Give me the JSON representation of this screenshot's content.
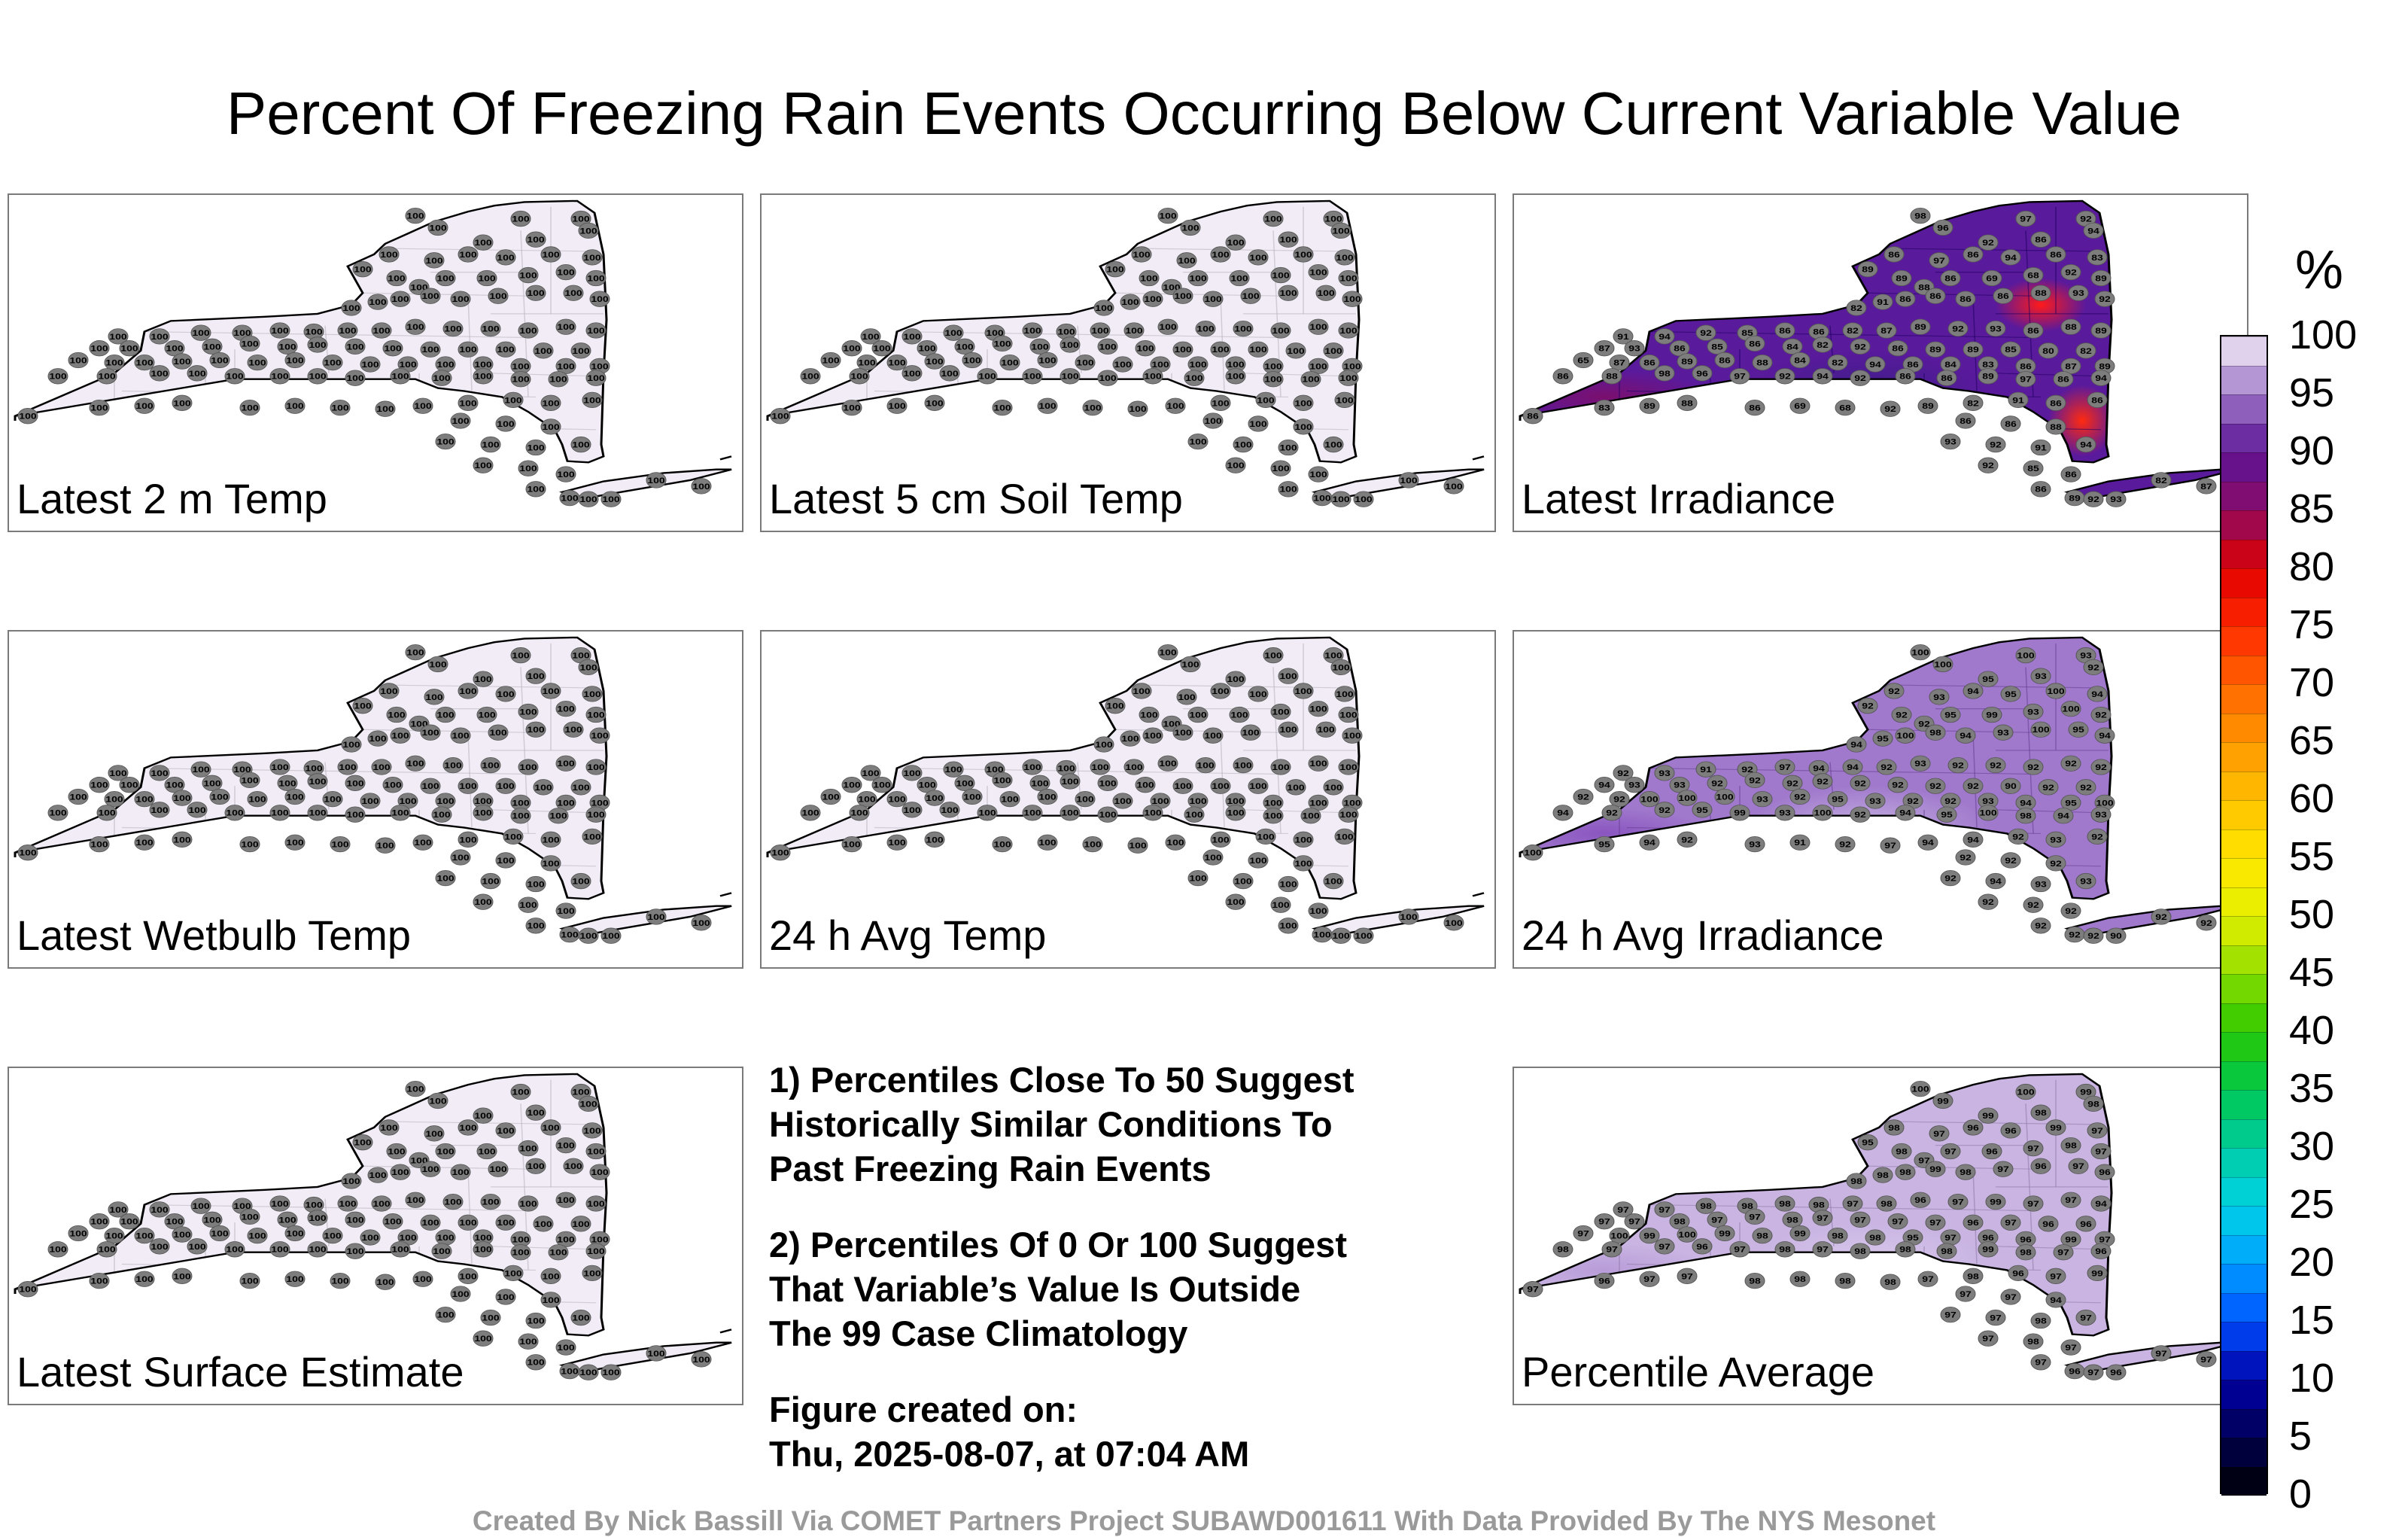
{
  "title": "Percent Of Freezing Rain Events Occurring Below Current Variable Value",
  "panels": [
    {
      "label": "Latest 2 m Temp",
      "fill": "#f1ecf5",
      "hotspots": [],
      "station_values": [
        100
      ]
    },
    {
      "label": "Latest 5 cm Soil Temp",
      "fill": "#f1ecf5",
      "hotspots": [],
      "station_values": [
        100
      ]
    },
    {
      "label": "Latest Irradiance",
      "fill": "#5a1a9c",
      "regions": [
        {
          "color": "#7b0f6e"
        },
        {
          "color": "#3f1d8a"
        }
      ],
      "hotspots": [
        {
          "color": "#ff1a1a"
        },
        {
          "color": "#ff2a10"
        }
      ],
      "station_values": [
        98,
        96,
        97,
        92,
        94,
        92,
        86,
        86,
        89,
        97,
        86,
        94,
        86,
        83,
        89,
        88,
        86,
        69,
        68,
        92,
        89,
        82,
        91,
        86,
        86,
        86,
        86,
        88,
        93,
        92,
        91,
        94,
        92,
        85,
        86,
        86,
        82,
        87,
        89,
        92,
        93,
        86,
        88,
        89,
        87,
        93,
        86,
        85,
        86,
        84,
        82,
        92,
        86,
        89,
        89,
        85,
        80,
        82,
        65,
        87,
        86,
        89,
        86,
        88,
        84,
        82,
        94,
        86,
        84,
        83,
        86,
        87,
        89,
        86,
        88
      ]
    },
    {
      "label": "Latest Wetbulb Temp",
      "fill": "#f1ecf5",
      "hotspots": [],
      "station_values": [
        100
      ]
    },
    {
      "label": "24 h Avg Temp",
      "fill": "#f1ecf5",
      "hotspots": [],
      "station_values": [
        100
      ]
    },
    {
      "label": "24 h Avg Irradiance",
      "fill": "#a079cc",
      "regions": [
        {
          "color": "#8a55c0"
        },
        {
          "color": "#c4aee0"
        }
      ],
      "hotspots": [],
      "station_values": [
        100,
        100,
        100,
        93,
        92,
        95,
        93,
        92,
        92,
        93,
        94,
        95,
        100,
        94,
        92,
        92,
        95,
        99,
        93,
        100,
        92,
        94,
        95,
        100,
        98,
        94,
        93,
        100,
        95,
        94,
        92,
        93,
        91,
        92,
        97,
        94,
        94,
        92,
        93,
        92,
        92,
        92,
        92,
        92,
        94,
        93,
        93,
        92,
        92,
        92,
        92,
        92,
        92,
        92,
        92,
        90,
        92,
        92,
        92,
        92
      ]
    },
    {
      "label": "Latest Surface Estimate",
      "fill": "#f1ecf5",
      "hotspots": [],
      "station_values": [
        100
      ]
    },
    {
      "label": "Percentile Average",
      "fill": "#c9b4e2",
      "regions": [
        {
          "color": "#b89cd8"
        },
        {
          "color": "#d9c9ec"
        }
      ],
      "hotspots": [],
      "station_values": [
        100,
        99,
        100,
        99,
        98,
        99,
        98,
        98,
        95,
        97,
        96,
        96,
        99,
        97,
        98,
        97,
        97,
        96,
        97,
        98,
        97,
        98,
        98,
        98,
        99,
        98,
        97,
        96,
        97,
        96,
        97,
        97,
        98,
        98,
        98,
        98,
        97,
        98,
        96,
        97,
        99,
        97,
        97,
        94,
        97,
        97,
        98,
        97,
        97,
        98,
        97,
        97,
        97,
        97,
        96,
        97,
        96,
        96,
        97
      ]
    }
  ],
  "notes": {
    "note1_lines": [
      "1) Percentiles Close To 50 Suggest",
      "Historically Similar Conditions To",
      "Past Freezing Rain Events"
    ],
    "note2_lines": [
      "2) Percentiles Of 0 Or 100 Suggest",
      "That Variable’s Value Is Outside",
      "The 99 Case Climatology"
    ],
    "created_label": "Figure created on:",
    "created_value": "Thu, 2025-08-07, at 07:04 AM"
  },
  "colorbar": {
    "unit": "%",
    "min": 0,
    "max": 100,
    "ticks": [
      0,
      5,
      10,
      15,
      20,
      25,
      30,
      35,
      40,
      45,
      50,
      55,
      60,
      65,
      70,
      75,
      80,
      85,
      90,
      95,
      100
    ],
    "stops": [
      {
        "value": 0,
        "color": "#000000"
      },
      {
        "value": 5,
        "color": "#000050"
      },
      {
        "value": 10,
        "color": "#0000a8"
      },
      {
        "value": 15,
        "color": "#0050ff"
      },
      {
        "value": 20,
        "color": "#00a0ff"
      },
      {
        "value": 25,
        "color": "#00d2e6"
      },
      {
        "value": 30,
        "color": "#00cca0"
      },
      {
        "value": 35,
        "color": "#00c850"
      },
      {
        "value": 40,
        "color": "#28c800"
      },
      {
        "value": 45,
        "color": "#8cdc00"
      },
      {
        "value": 50,
        "color": "#e6f000"
      },
      {
        "value": 55,
        "color": "#ffe600"
      },
      {
        "value": 60,
        "color": "#ffc000"
      },
      {
        "value": 65,
        "color": "#ff9600"
      },
      {
        "value": 70,
        "color": "#ff6400"
      },
      {
        "value": 75,
        "color": "#ff2800"
      },
      {
        "value": 80,
        "color": "#e00000"
      },
      {
        "value": 85,
        "color": "#8c0a64"
      },
      {
        "value": 90,
        "color": "#5a1496"
      },
      {
        "value": 95,
        "color": "#a078c8"
      },
      {
        "value": 100,
        "color": "#f5f0f8"
      }
    ]
  },
  "footer": "Created By Nick Bassill Via COMET Partners Project SUBAWD001611 With Data Provided By The NYS Mesonet"
}
